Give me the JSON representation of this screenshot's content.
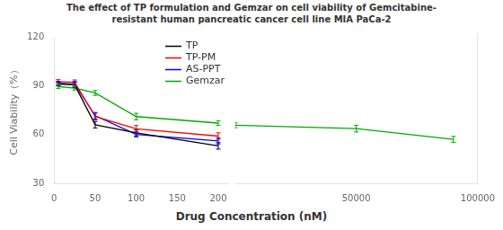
{
  "chart_data": [
    {
      "type": "line",
      "title": "The effect of TP formulation and Gemzar on cell viability of Gemcitabine-\nresistant human pancreatic cancer cell line MIA PaCa-2",
      "x_label": "Drug Concentration (nM)",
      "y_label": "Cell Viability（%）",
      "x": [
        5,
        25,
        50,
        100,
        200
      ],
      "series": [
        {
          "name": "TP",
          "color": "#000000",
          "values": [
            91.0,
            90.5,
            66.0,
            61.0,
            53.0
          ],
          "yerr": [
            1.2,
            1.5,
            2.0,
            1.8,
            2.0
          ]
        },
        {
          "name": "TP-PM",
          "color": "#ff0000",
          "values": [
            92.5,
            92.0,
            71.0,
            63.5,
            59.0
          ],
          "yerr": [
            1.2,
            1.5,
            2.0,
            2.0,
            2.0
          ]
        },
        {
          "name": "AS-PPT",
          "color": "#0000ff",
          "values": [
            91.5,
            91.0,
            71.5,
            60.0,
            56.0
          ],
          "yerr": [
            1.2,
            1.5,
            2.0,
            1.5,
            1.8
          ]
        },
        {
          "name": "Gemzar",
          "color": "#00aa00",
          "values": [
            89.5,
            88.5,
            85.5,
            71.0,
            67.0
          ],
          "yerr": [
            1.2,
            1.2,
            1.5,
            2.0,
            1.5
          ]
        }
      ],
      "xlim": [
        0,
        212
      ],
      "xticks": [
        0,
        50,
        100,
        150,
        200
      ],
      "ylim": [
        30,
        120
      ],
      "yticks": [
        30,
        60,
        90,
        120
      ],
      "marker": "none",
      "grid": false,
      "legend": "upper right"
    },
    {
      "type": "line",
      "x": [
        225,
        50000,
        90000
      ],
      "series": [
        {
          "name": "Gemzar",
          "color": "#00aa00",
          "values": [
            65.0,
            63.0,
            56.5
          ],
          "yerr": [
            1.5,
            2.0,
            1.8
          ]
        }
      ],
      "xlim": [
        218,
        100000
      ],
      "xticks": [
        50000,
        100000
      ],
      "ylim": [
        30,
        120
      ],
      "yticks": [
        30,
        60,
        90,
        120
      ],
      "marker": "none",
      "grid": false,
      "tick_labels": "x"
    }
  ]
}
